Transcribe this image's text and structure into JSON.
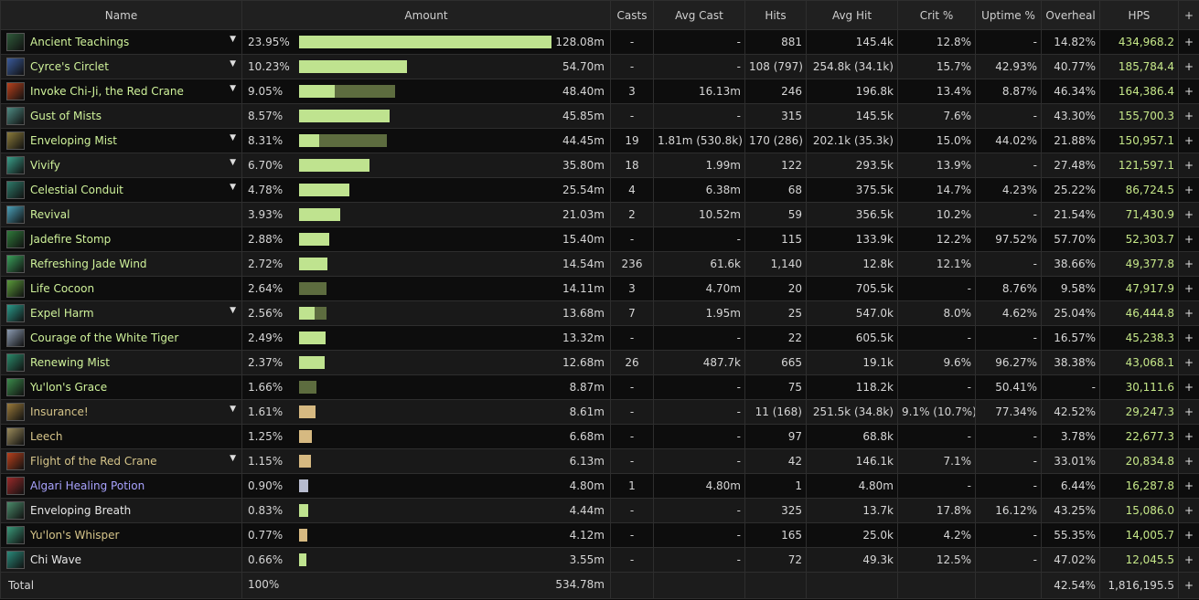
{
  "headers": {
    "name": "Name",
    "amount": "Amount",
    "casts": "Casts",
    "avg_cast": "Avg Cast",
    "hits": "Hits",
    "avg_hit": "Avg Hit",
    "crit": "Crit %",
    "uptime": "Uptime %",
    "overheal": "Overheal",
    "hps": "HPS",
    "plus": "+"
  },
  "colors": {
    "green_bar": "#bfe38f",
    "dark_bar": "#5d6c3f",
    "tan_bar": "#d6b981",
    "grey_bar": "#b7bccf",
    "name_green": "#cff29a",
    "name_tan": "#d6c58a",
    "name_white": "#e6e6e6",
    "name_purple": "#a9a3ff",
    "hps_green": "#c6e889"
  },
  "rows": [
    {
      "name": "Ancient Teachings",
      "icon": "ancient-teachings-icon",
      "expand": "▼",
      "pct": "23.95%",
      "frac": 1.0,
      "frac2": 0,
      "bar": "green",
      "amount": "128.08m",
      "casts": "-",
      "avg_cast": "-",
      "hits": "881",
      "avg_hit": "145.4k",
      "crit": "12.8%",
      "uptime": "-",
      "overheal": "14.82%",
      "hps": "434,968.2",
      "nc": "name_green",
      "ic": "#2f5a3a"
    },
    {
      "name": "Cyrce's Circlet",
      "icon": "cyrces-circlet-icon",
      "expand": "▼",
      "pct": "10.23%",
      "frac": 0.427,
      "frac2": 0,
      "bar": "green",
      "amount": "54.70m",
      "casts": "-",
      "avg_cast": "-",
      "hits": "108 (797)",
      "avg_hit": "254.8k (34.1k)",
      "crit": "15.7%",
      "uptime": "42.93%",
      "overheal": "40.77%",
      "hps": "185,784.4",
      "nc": "name_green",
      "ic": "#3a5a9a"
    },
    {
      "name": "Invoke Chi-Ji, the Red Crane",
      "icon": "invoke-chi-ji-icon",
      "expand": "▼",
      "pct": "9.05%",
      "frac": 0.14,
      "frac2": 0.238,
      "bar": "green",
      "amount": "48.40m",
      "casts": "3",
      "avg_cast": "16.13m",
      "hits": "246",
      "avg_hit": "196.8k",
      "crit": "13.4%",
      "uptime": "8.87%",
      "overheal": "46.34%",
      "hps": "164,386.4",
      "nc": "name_green",
      "ic": "#b8401c"
    },
    {
      "name": "Gust of Mists",
      "icon": "gust-of-mists-icon",
      "expand": "",
      "pct": "8.57%",
      "frac": 0.358,
      "frac2": 0,
      "bar": "green",
      "amount": "45.85m",
      "casts": "-",
      "avg_cast": "-",
      "hits": "315",
      "avg_hit": "145.5k",
      "crit": "7.6%",
      "uptime": "-",
      "overheal": "43.30%",
      "hps": "155,700.3",
      "nc": "name_green",
      "ic": "#4e8a82"
    },
    {
      "name": "Enveloping Mist",
      "icon": "enveloping-mist-icon",
      "expand": "▼",
      "pct": "8.31%",
      "frac": 0.08,
      "frac2": 0.267,
      "bar": "green",
      "amount": "44.45m",
      "casts": "19",
      "avg_cast": "1.81m (530.8k)",
      "hits": "170 (286)",
      "avg_hit": "202.1k (35.3k)",
      "crit": "15.0%",
      "uptime": "44.02%",
      "overheal": "21.88%",
      "hps": "150,957.1",
      "nc": "name_green",
      "ic": "#8a7a3a"
    },
    {
      "name": "Vivify",
      "icon": "vivify-icon",
      "expand": "▼",
      "pct": "6.70%",
      "frac": 0.28,
      "frac2": 0,
      "bar": "green",
      "amount": "35.80m",
      "casts": "18",
      "avg_cast": "1.99m",
      "hits": "122",
      "avg_hit": "293.5k",
      "crit": "13.9%",
      "uptime": "-",
      "overheal": "27.48%",
      "hps": "121,597.1",
      "nc": "name_green",
      "ic": "#3aa08a"
    },
    {
      "name": "Celestial Conduit",
      "icon": "celestial-conduit-icon",
      "expand": "▼",
      "pct": "4.78%",
      "frac": 0.2,
      "frac2": 0,
      "bar": "green",
      "amount": "25.54m",
      "casts": "4",
      "avg_cast": "6.38m",
      "hits": "68",
      "avg_hit": "375.5k",
      "crit": "14.7%",
      "uptime": "4.23%",
      "overheal": "25.22%",
      "hps": "86,724.5",
      "nc": "name_green",
      "ic": "#2e7a6a"
    },
    {
      "name": "Revival",
      "icon": "revival-icon",
      "expand": "",
      "pct": "3.93%",
      "frac": 0.164,
      "frac2": 0,
      "bar": "green",
      "amount": "21.03m",
      "casts": "2",
      "avg_cast": "10.52m",
      "hits": "59",
      "avg_hit": "356.5k",
      "crit": "10.2%",
      "uptime": "-",
      "overheal": "21.54%",
      "hps": "71,430.9",
      "nc": "name_green",
      "ic": "#4aa0b8"
    },
    {
      "name": "Jadefire Stomp",
      "icon": "jadefire-stomp-icon",
      "expand": "",
      "pct": "2.88%",
      "frac": 0.12,
      "frac2": 0,
      "bar": "green",
      "amount": "15.40m",
      "casts": "-",
      "avg_cast": "-",
      "hits": "115",
      "avg_hit": "133.9k",
      "crit": "12.2%",
      "uptime": "97.52%",
      "overheal": "57.70%",
      "hps": "52,303.7",
      "nc": "name_green",
      "ic": "#2f7a3a"
    },
    {
      "name": "Refreshing Jade Wind",
      "icon": "refreshing-jade-wind-icon",
      "expand": "",
      "pct": "2.72%",
      "frac": 0.114,
      "frac2": 0,
      "bar": "green",
      "amount": "14.54m",
      "casts": "236",
      "avg_cast": "61.6k",
      "hits": "1,140",
      "avg_hit": "12.8k",
      "crit": "12.1%",
      "uptime": "-",
      "overheal": "38.66%",
      "hps": "49,377.8",
      "nc": "name_green",
      "ic": "#3aa05a"
    },
    {
      "name": "Life Cocoon",
      "icon": "life-cocoon-icon",
      "expand": "",
      "pct": "2.64%",
      "frac": 0,
      "frac2": 0.11,
      "bar": "green",
      "amount": "14.11m",
      "casts": "3",
      "avg_cast": "4.70m",
      "hits": "20",
      "avg_hit": "705.5k",
      "crit": "-",
      "uptime": "8.76%",
      "overheal": "9.58%",
      "hps": "47,917.9",
      "nc": "name_green",
      "ic": "#5a9a3a"
    },
    {
      "name": "Expel Harm",
      "icon": "expel-harm-icon",
      "expand": "▼",
      "pct": "2.56%",
      "frac": 0.06,
      "frac2": 0.047,
      "bar": "green",
      "amount": "13.68m",
      "casts": "7",
      "avg_cast": "1.95m",
      "hits": "25",
      "avg_hit": "547.0k",
      "crit": "8.0%",
      "uptime": "4.62%",
      "overheal": "25.04%",
      "hps": "46,444.8",
      "nc": "name_green",
      "ic": "#2a9a8a"
    },
    {
      "name": "Courage of the White Tiger",
      "icon": "white-tiger-icon",
      "expand": "",
      "pct": "2.49%",
      "frac": 0.104,
      "frac2": 0,
      "bar": "green",
      "amount": "13.32m",
      "casts": "-",
      "avg_cast": "-",
      "hits": "22",
      "avg_hit": "605.5k",
      "crit": "-",
      "uptime": "-",
      "overheal": "16.57%",
      "hps": "45,238.3",
      "nc": "name_green",
      "ic": "#8a9ab0"
    },
    {
      "name": "Renewing Mist",
      "icon": "renewing-mist-icon",
      "expand": "",
      "pct": "2.37%",
      "frac": 0.1,
      "frac2": 0,
      "bar": "green",
      "amount": "12.68m",
      "casts": "26",
      "avg_cast": "487.7k",
      "hits": "665",
      "avg_hit": "19.1k",
      "crit": "9.6%",
      "uptime": "96.27%",
      "overheal": "38.38%",
      "hps": "43,068.1",
      "nc": "name_green",
      "ic": "#2a8a6a"
    },
    {
      "name": "Yu'lon's Grace",
      "icon": "yulons-grace-icon",
      "expand": "",
      "pct": "1.66%",
      "frac": 0,
      "frac2": 0.07,
      "bar": "green",
      "amount": "8.87m",
      "casts": "-",
      "avg_cast": "-",
      "hits": "75",
      "avg_hit": "118.2k",
      "crit": "-",
      "uptime": "50.41%",
      "overheal": "-",
      "hps": "30,111.6",
      "nc": "name_green",
      "ic": "#3a8a4a"
    },
    {
      "name": "Insurance!",
      "icon": "insurance-icon",
      "expand": "▼",
      "pct": "1.61%",
      "frac": 0.067,
      "frac2": 0,
      "bar": "tan",
      "amount": "8.61m",
      "casts": "-",
      "avg_cast": "-",
      "hits": "11 (168)",
      "avg_hit": "251.5k (34.8k)",
      "crit": "9.1% (10.7%)",
      "uptime": "77.34%",
      "overheal": "42.52%",
      "hps": "29,247.3",
      "nc": "name_tan",
      "ic": "#9a7a3a"
    },
    {
      "name": "Leech",
      "icon": "leech-icon",
      "expand": "",
      "pct": "1.25%",
      "frac": 0.052,
      "frac2": 0,
      "bar": "tan",
      "amount": "6.68m",
      "casts": "-",
      "avg_cast": "-",
      "hits": "97",
      "avg_hit": "68.8k",
      "crit": "-",
      "uptime": "-",
      "overheal": "3.78%",
      "hps": "22,677.3",
      "nc": "name_tan",
      "ic": "#9a8a5a"
    },
    {
      "name": "Flight of the Red Crane",
      "icon": "red-crane-icon",
      "expand": "▼",
      "pct": "1.15%",
      "frac": 0.048,
      "frac2": 0,
      "bar": "tan",
      "amount": "6.13m",
      "casts": "-",
      "avg_cast": "-",
      "hits": "42",
      "avg_hit": "146.1k",
      "crit": "7.1%",
      "uptime": "-",
      "overheal": "33.01%",
      "hps": "20,834.8",
      "nc": "name_tan",
      "ic": "#b8401c"
    },
    {
      "name": "Algari Healing Potion",
      "icon": "healing-potion-icon",
      "expand": "",
      "pct": "0.90%",
      "frac": 0.038,
      "frac2": 0,
      "bar": "grey",
      "amount": "4.80m",
      "casts": "1",
      "avg_cast": "4.80m",
      "hits": "1",
      "avg_hit": "4.80m",
      "crit": "-",
      "uptime": "-",
      "overheal": "6.44%",
      "hps": "16,287.8",
      "nc": "name_purple",
      "ic": "#9a2a2a"
    },
    {
      "name": "Enveloping Breath",
      "icon": "enveloping-breath-icon",
      "expand": "",
      "pct": "0.83%",
      "frac": 0.035,
      "frac2": 0,
      "bar": "green",
      "amount": "4.44m",
      "casts": "-",
      "avg_cast": "-",
      "hits": "325",
      "avg_hit": "13.7k",
      "crit": "17.8%",
      "uptime": "16.12%",
      "overheal": "43.25%",
      "hps": "15,086.0",
      "nc": "name_white",
      "ic": "#4a8a6a"
    },
    {
      "name": "Yu'lon's Whisper",
      "icon": "yulons-whisper-icon",
      "expand": "",
      "pct": "0.77%",
      "frac": 0.032,
      "frac2": 0,
      "bar": "tan",
      "amount": "4.12m",
      "casts": "-",
      "avg_cast": "-",
      "hits": "165",
      "avg_hit": "25.0k",
      "crit": "4.2%",
      "uptime": "-",
      "overheal": "55.35%",
      "hps": "14,005.7",
      "nc": "name_tan",
      "ic": "#3a9a7a"
    },
    {
      "name": "Chi Wave",
      "icon": "chi-wave-icon",
      "expand": "",
      "pct": "0.66%",
      "frac": 0.028,
      "frac2": 0,
      "bar": "green",
      "amount": "3.55m",
      "casts": "-",
      "avg_cast": "-",
      "hits": "72",
      "avg_hit": "49.3k",
      "crit": "12.5%",
      "uptime": "-",
      "overheal": "47.02%",
      "hps": "12,045.5",
      "nc": "name_white",
      "ic": "#2a8a7a"
    }
  ],
  "total": {
    "label": "Total",
    "pct": "100%",
    "amount": "534.78m",
    "overheal": "42.54%",
    "hps": "1,816,195.5"
  }
}
